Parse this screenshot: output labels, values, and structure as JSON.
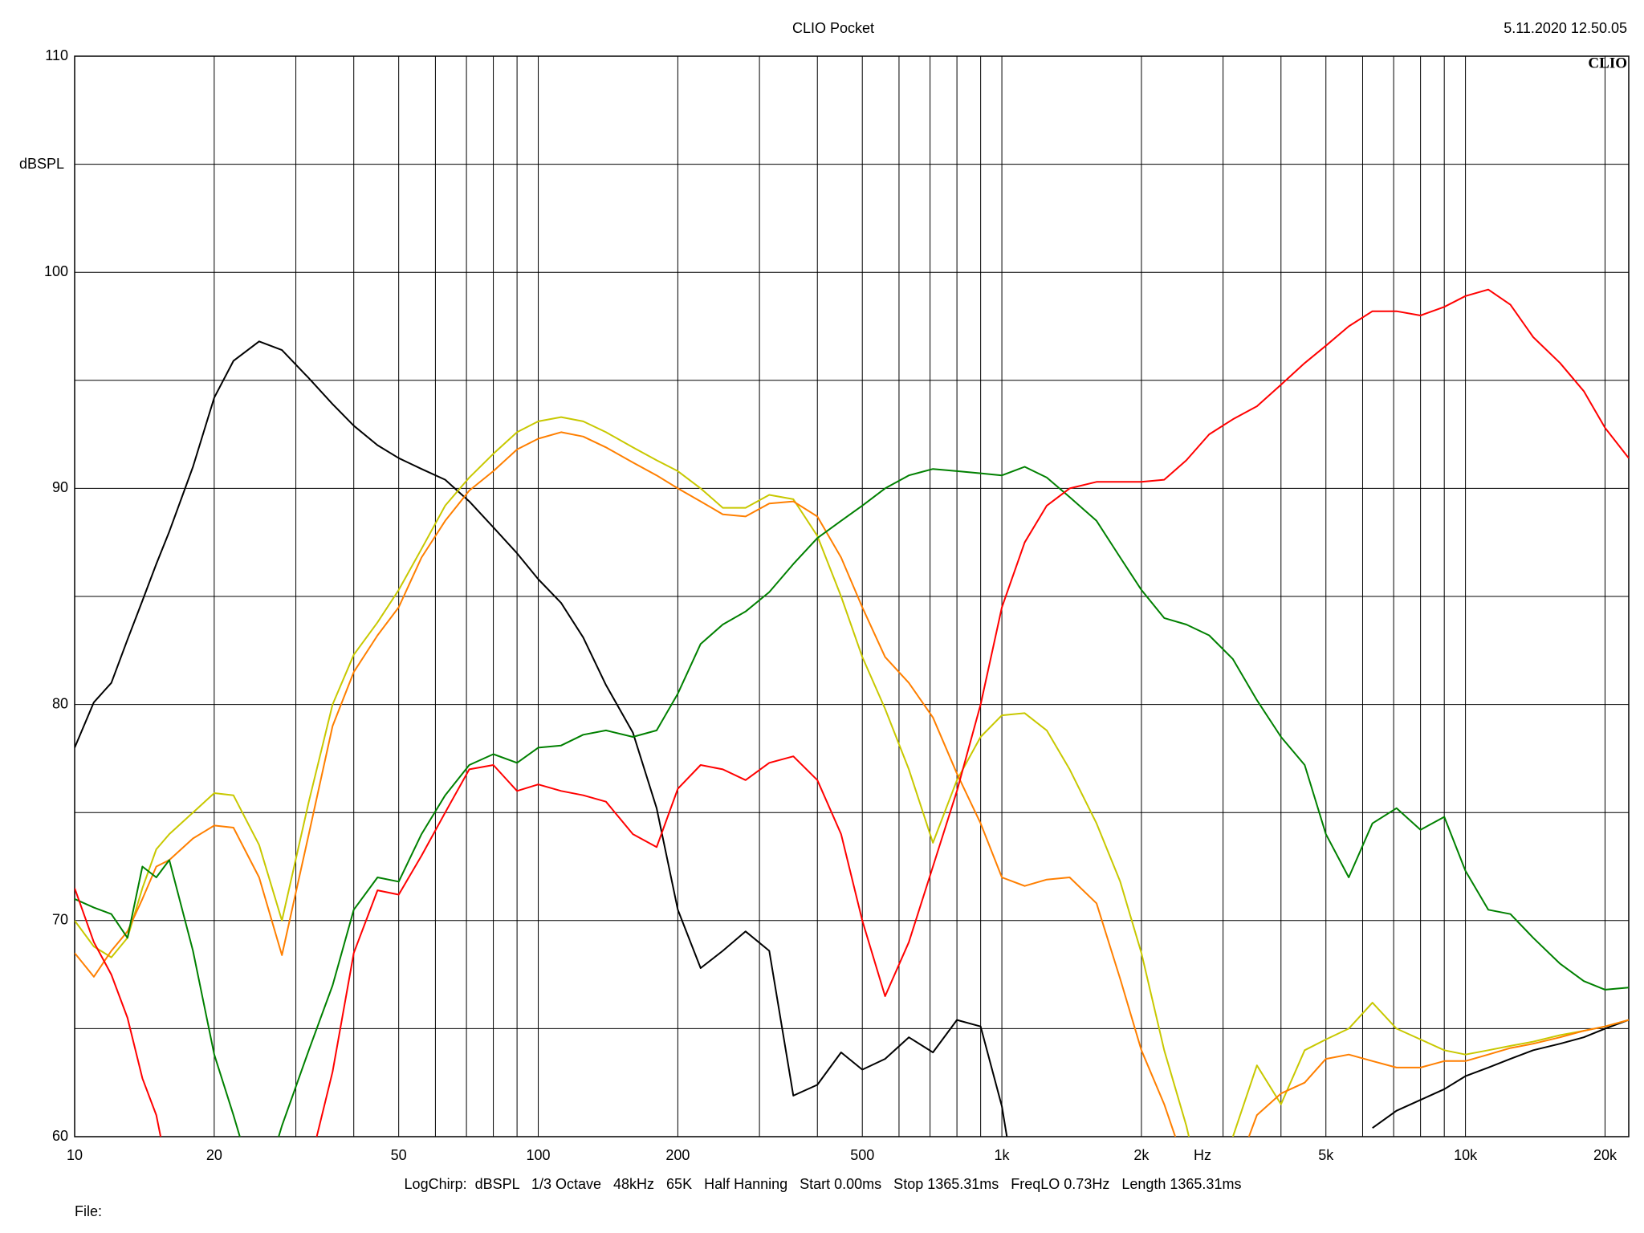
{
  "chart_data": {
    "type": "line",
    "title": "CLIO Pocket",
    "timestamp": "5.11.2020 12.50.05",
    "logo": "CLIO",
    "x_label": "Hz",
    "y_label": "dBSPL",
    "footer": "LogChirp:  dBSPL   1/3 Octave   48kHz   65K   Half Hanning   Start 0.00ms   Stop 1365.31ms   FreqLO 0.73Hz   Length 1365.31ms",
    "file_label": "File:",
    "x_log": true,
    "grid": true,
    "xlim": [
      10,
      22500
    ],
    "ylim": [
      60,
      110
    ],
    "xticks": [
      10,
      20,
      50,
      100,
      200,
      500,
      {
        "value": 1000,
        "label": "1k"
      },
      {
        "value": 2000,
        "label": "2k"
      },
      {
        "value": 5000,
        "label": "5k"
      },
      {
        "value": 10000,
        "label": "10k"
      },
      {
        "value": 20000,
        "label": "20k"
      }
    ],
    "yticks": [
      60,
      70,
      80,
      90,
      100,
      110
    ],
    "xgrid_minor": [
      30,
      40,
      60,
      70,
      80,
      90,
      300,
      400,
      600,
      700,
      800,
      900,
      3000,
      4000,
      6000,
      7000,
      8000,
      9000
    ],
    "ygrid_minor": [
      65,
      75,
      85,
      95,
      105
    ],
    "x": [
      10,
      11,
      12,
      13,
      14,
      15,
      16,
      18,
      20,
      22,
      25,
      28,
      32,
      36,
      40,
      45,
      50,
      56,
      63,
      71,
      80,
      90,
      100,
      112,
      125,
      140,
      160,
      180,
      200,
      224,
      250,
      280,
      315,
      355,
      400,
      450,
      500,
      560,
      630,
      710,
      800,
      900,
      1000,
      1120,
      1250,
      1400,
      1600,
      1800,
      2000,
      2240,
      2500,
      2800,
      3150,
      3550,
      4000,
      4500,
      5000,
      5600,
      6300,
      7100,
      8000,
      9000,
      10000,
      11200,
      12500,
      14000,
      16000,
      18000,
      20000,
      22500
    ],
    "series": [
      {
        "color": "#000000",
        "values": [
          78,
          80.1,
          81,
          83,
          84.8,
          86.5,
          88,
          91,
          94.2,
          95.9,
          96.8,
          96.4,
          95.1,
          93.9,
          92.9,
          92,
          91.4,
          90.9,
          90.4,
          89.4,
          88.2,
          87,
          85.8,
          84.7,
          83.1,
          80.9,
          78.7,
          75.2,
          70.5,
          67.8,
          68.6,
          69.5,
          68.6,
          61.9,
          62.4,
          63.9,
          63.1,
          63.6,
          64.6,
          63.9,
          65.4,
          65.1,
          61.4,
          55,
          null,
          null,
          null,
          null,
          null,
          null,
          null,
          null,
          null,
          null,
          null,
          null,
          null,
          null,
          60.4,
          61.2,
          61.7,
          62.2,
          62.8,
          63.2,
          63.6,
          64,
          64.3,
          64.6,
          65,
          65.4
        ]
      },
      {
        "color": "#c8c800",
        "values": [
          70,
          68.8,
          68.3,
          69.2,
          71.5,
          73.3,
          74,
          75,
          75.9,
          75.8,
          73.5,
          70,
          75.5,
          80,
          82.3,
          83.8,
          85.3,
          87.2,
          89.2,
          90.5,
          91.6,
          92.6,
          93.1,
          93.3,
          93.1,
          92.6,
          91.9,
          91.3,
          90.8,
          90,
          89.1,
          89.1,
          89.7,
          89.5,
          87.8,
          85,
          82.2,
          79.8,
          77,
          73.6,
          76.5,
          78.5,
          79.5,
          79.6,
          78.8,
          77,
          74.5,
          71.8,
          68.5,
          64,
          60.5,
          56,
          60,
          63.3,
          61.5,
          64,
          64.5,
          65,
          66.2,
          65,
          64.5,
          64,
          63.8,
          64,
          64.2,
          64.4,
          64.7,
          64.9,
          65.1,
          65.4
        ]
      },
      {
        "color": "#ff7f00",
        "values": [
          68.5,
          67.4,
          68.6,
          69.5,
          71,
          72.5,
          72.8,
          73.8,
          74.4,
          74.3,
          72,
          68.4,
          74,
          79,
          81.5,
          83.2,
          84.5,
          86.8,
          88.5,
          89.9,
          90.8,
          91.8,
          92.3,
          92.6,
          92.4,
          91.9,
          91.2,
          90.6,
          90,
          89.4,
          88.8,
          88.7,
          89.3,
          89.4,
          88.7,
          86.8,
          84.5,
          82.2,
          81,
          79.4,
          76.8,
          74.5,
          72,
          71.6,
          71.9,
          72,
          70.8,
          67.3,
          64,
          61.5,
          58.5,
          null,
          58,
          61,
          62,
          62.5,
          63.6,
          63.8,
          63.5,
          63.2,
          63.2,
          63.5,
          63.5,
          63.8,
          64.1,
          64.3,
          64.6,
          64.9,
          65.1,
          65.4
        ]
      },
      {
        "color": "#008000",
        "values": [
          71,
          70.6,
          70.3,
          69.2,
          72.5,
          72,
          72.8,
          68.6,
          63.8,
          61,
          57,
          60.5,
          64,
          67,
          70.5,
          72,
          71.8,
          74,
          75.8,
          77.2,
          77.7,
          77.3,
          78,
          78.1,
          78.6,
          78.8,
          78.5,
          78.8,
          80.5,
          82.8,
          83.7,
          84.3,
          85.2,
          86.5,
          87.7,
          88.5,
          89.2,
          90,
          90.6,
          90.9,
          90.8,
          90.7,
          90.6,
          91,
          90.5,
          89.6,
          88.5,
          86.8,
          85.3,
          84,
          83.7,
          83.2,
          82.1,
          80.2,
          78.5,
          77.2,
          74,
          72,
          74.5,
          75.2,
          74.2,
          74.8,
          72.3,
          70.5,
          70.3,
          69.2,
          68,
          67.2,
          66.8,
          66.9
        ]
      },
      {
        "color": "#ff0000",
        "values": [
          71.5,
          69,
          67.5,
          65.5,
          62.7,
          61,
          58,
          null,
          null,
          null,
          null,
          null,
          58.5,
          63,
          68.5,
          71.4,
          71.2,
          73,
          75,
          77,
          77.2,
          76,
          76.3,
          76,
          75.8,
          75.5,
          74,
          73.4,
          76.1,
          77.2,
          77,
          76.5,
          77.3,
          77.6,
          76.5,
          74,
          70,
          66.5,
          69,
          72.5,
          76,
          80,
          84.5,
          87.5,
          89.2,
          90,
          90.3,
          90.3,
          90.3,
          90.4,
          91.3,
          92.5,
          93.2,
          93.8,
          94.8,
          95.8,
          96.6,
          97.5,
          98.2,
          98.2,
          98,
          98.4,
          98.9,
          99.2,
          98.5,
          97,
          95.8,
          94.5,
          92.8,
          91.4
        ]
      }
    ]
  }
}
